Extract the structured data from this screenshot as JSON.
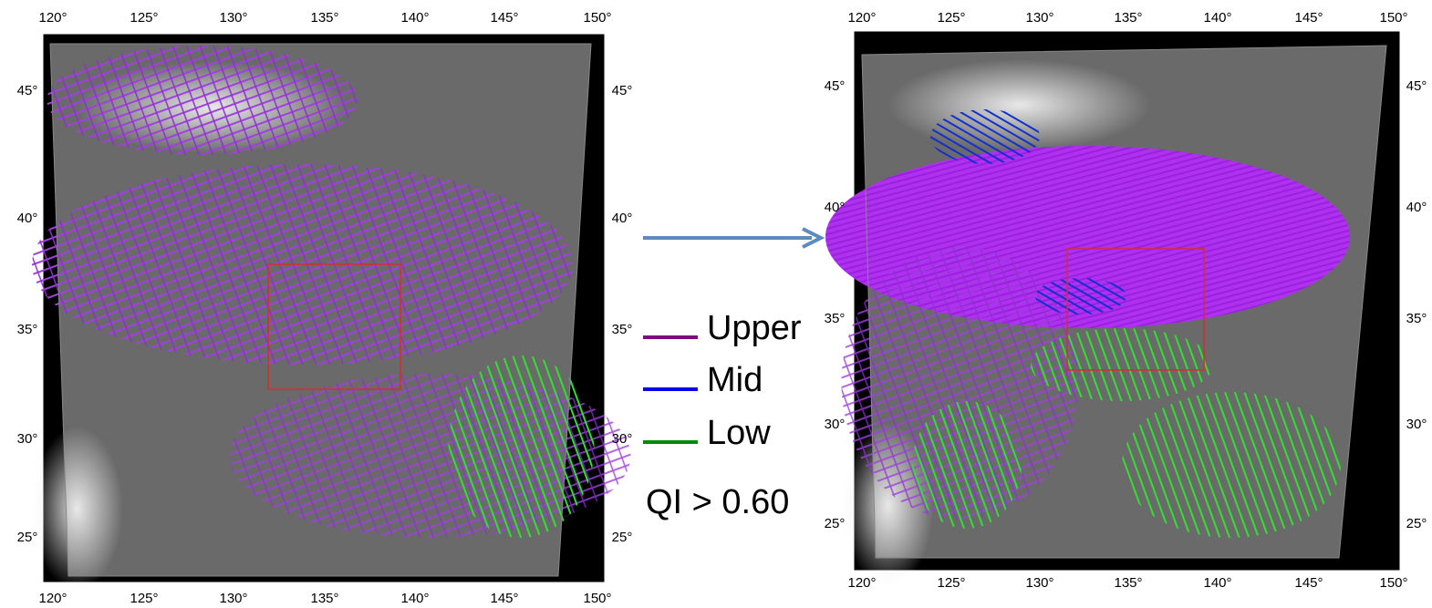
{
  "panels": [
    {
      "lon_labels": [
        "120°",
        "125°",
        "130°",
        "135°",
        "140°",
        "145°",
        "150°"
      ],
      "lat_labels": [
        "45°",
        "40°",
        "35°",
        "30°",
        "25°"
      ]
    },
    {
      "lon_labels": [
        "120°",
        "125°",
        "130°",
        "135°",
        "140°",
        "145°",
        "150°"
      ],
      "lat_labels": [
        "45°",
        "40°",
        "35°",
        "30°",
        "25°"
      ]
    }
  ],
  "legend": [
    {
      "name": "Upper",
      "color": "#7b0c7b"
    },
    {
      "name": "Mid",
      "color": "#0000ee"
    },
    {
      "name": "Low",
      "color": "#008c00"
    }
  ],
  "note": "QI > 0.60"
}
